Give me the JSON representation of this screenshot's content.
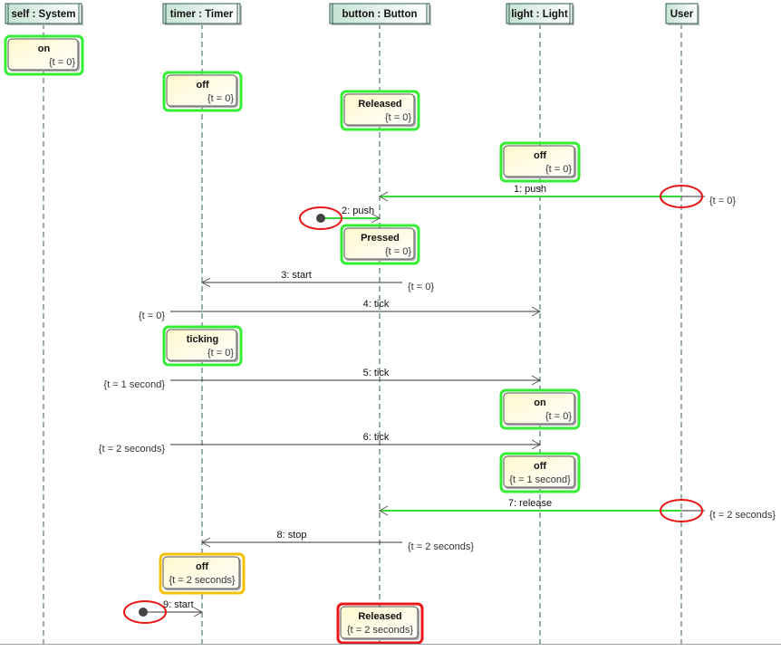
{
  "colors": {
    "active_state_border": "#33ee33",
    "warning_state_border": "#f5c000",
    "error_state_border": "#e81818",
    "highlight_ellipse": "#e81818",
    "green_message": "#33dd33"
  },
  "lifelines": [
    {
      "id": "self",
      "label": "self : System"
    },
    {
      "id": "timer",
      "label": "timer : Timer"
    },
    {
      "id": "button",
      "label": "button : Button"
    },
    {
      "id": "light",
      "label": "light : Light"
    },
    {
      "id": "user",
      "label": "User"
    }
  ],
  "states": [
    {
      "lifeline": "self",
      "name": "on",
      "constraint": "{t = 0}",
      "status": "ok"
    },
    {
      "lifeline": "timer",
      "name": "off",
      "constraint": "{t = 0}",
      "status": "ok"
    },
    {
      "lifeline": "button",
      "name": "Released",
      "constraint": "{t = 0}",
      "status": "ok"
    },
    {
      "lifeline": "light",
      "name": "off",
      "constraint": "{t = 0}",
      "status": "ok"
    },
    {
      "lifeline": "button",
      "name": "Pressed",
      "constraint": "{t = 0}",
      "status": "ok"
    },
    {
      "lifeline": "timer",
      "name": "ticking",
      "constraint": "{t = 0}",
      "status": "ok"
    },
    {
      "lifeline": "light",
      "name": "on",
      "constraint": "{t = 0}",
      "status": "ok"
    },
    {
      "lifeline": "light",
      "name": "off",
      "constraint": "{t = 1 second}",
      "status": "ok"
    },
    {
      "lifeline": "timer",
      "name": "off",
      "constraint": "{t = 2 seconds}",
      "status": "warning"
    },
    {
      "lifeline": "button",
      "name": "Released",
      "constraint": "{t = 2 seconds}",
      "status": "error"
    }
  ],
  "messages": [
    {
      "label": "1: push",
      "from": "user",
      "to": "button",
      "constraint": "{t = 0}",
      "highlight": true
    },
    {
      "label": "2: push",
      "from": "found",
      "to": "button",
      "constraint": "",
      "highlight": true
    },
    {
      "label": "3: start",
      "from": "button",
      "to": "timer",
      "constraint": "{t = 0}",
      "highlight": false
    },
    {
      "label": "4: tick",
      "from": "timer",
      "to": "light",
      "constraint": "{t = 0}",
      "highlight": false
    },
    {
      "label": "5: tick",
      "from": "timer",
      "to": "light",
      "constraint": "{t = 1 second}",
      "highlight": false
    },
    {
      "label": "6: tick",
      "from": "timer",
      "to": "light",
      "constraint": "{t = 2 seconds}",
      "highlight": false
    },
    {
      "label": "7: release",
      "from": "user",
      "to": "button",
      "constraint": "{t = 2 seconds}",
      "highlight": true
    },
    {
      "label": "8: stop",
      "from": "button",
      "to": "timer",
      "constraint": "{t = 2 seconds}",
      "highlight": false
    },
    {
      "label": "9: start",
      "from": "found",
      "to": "timer",
      "constraint": "",
      "highlight": false
    }
  ]
}
